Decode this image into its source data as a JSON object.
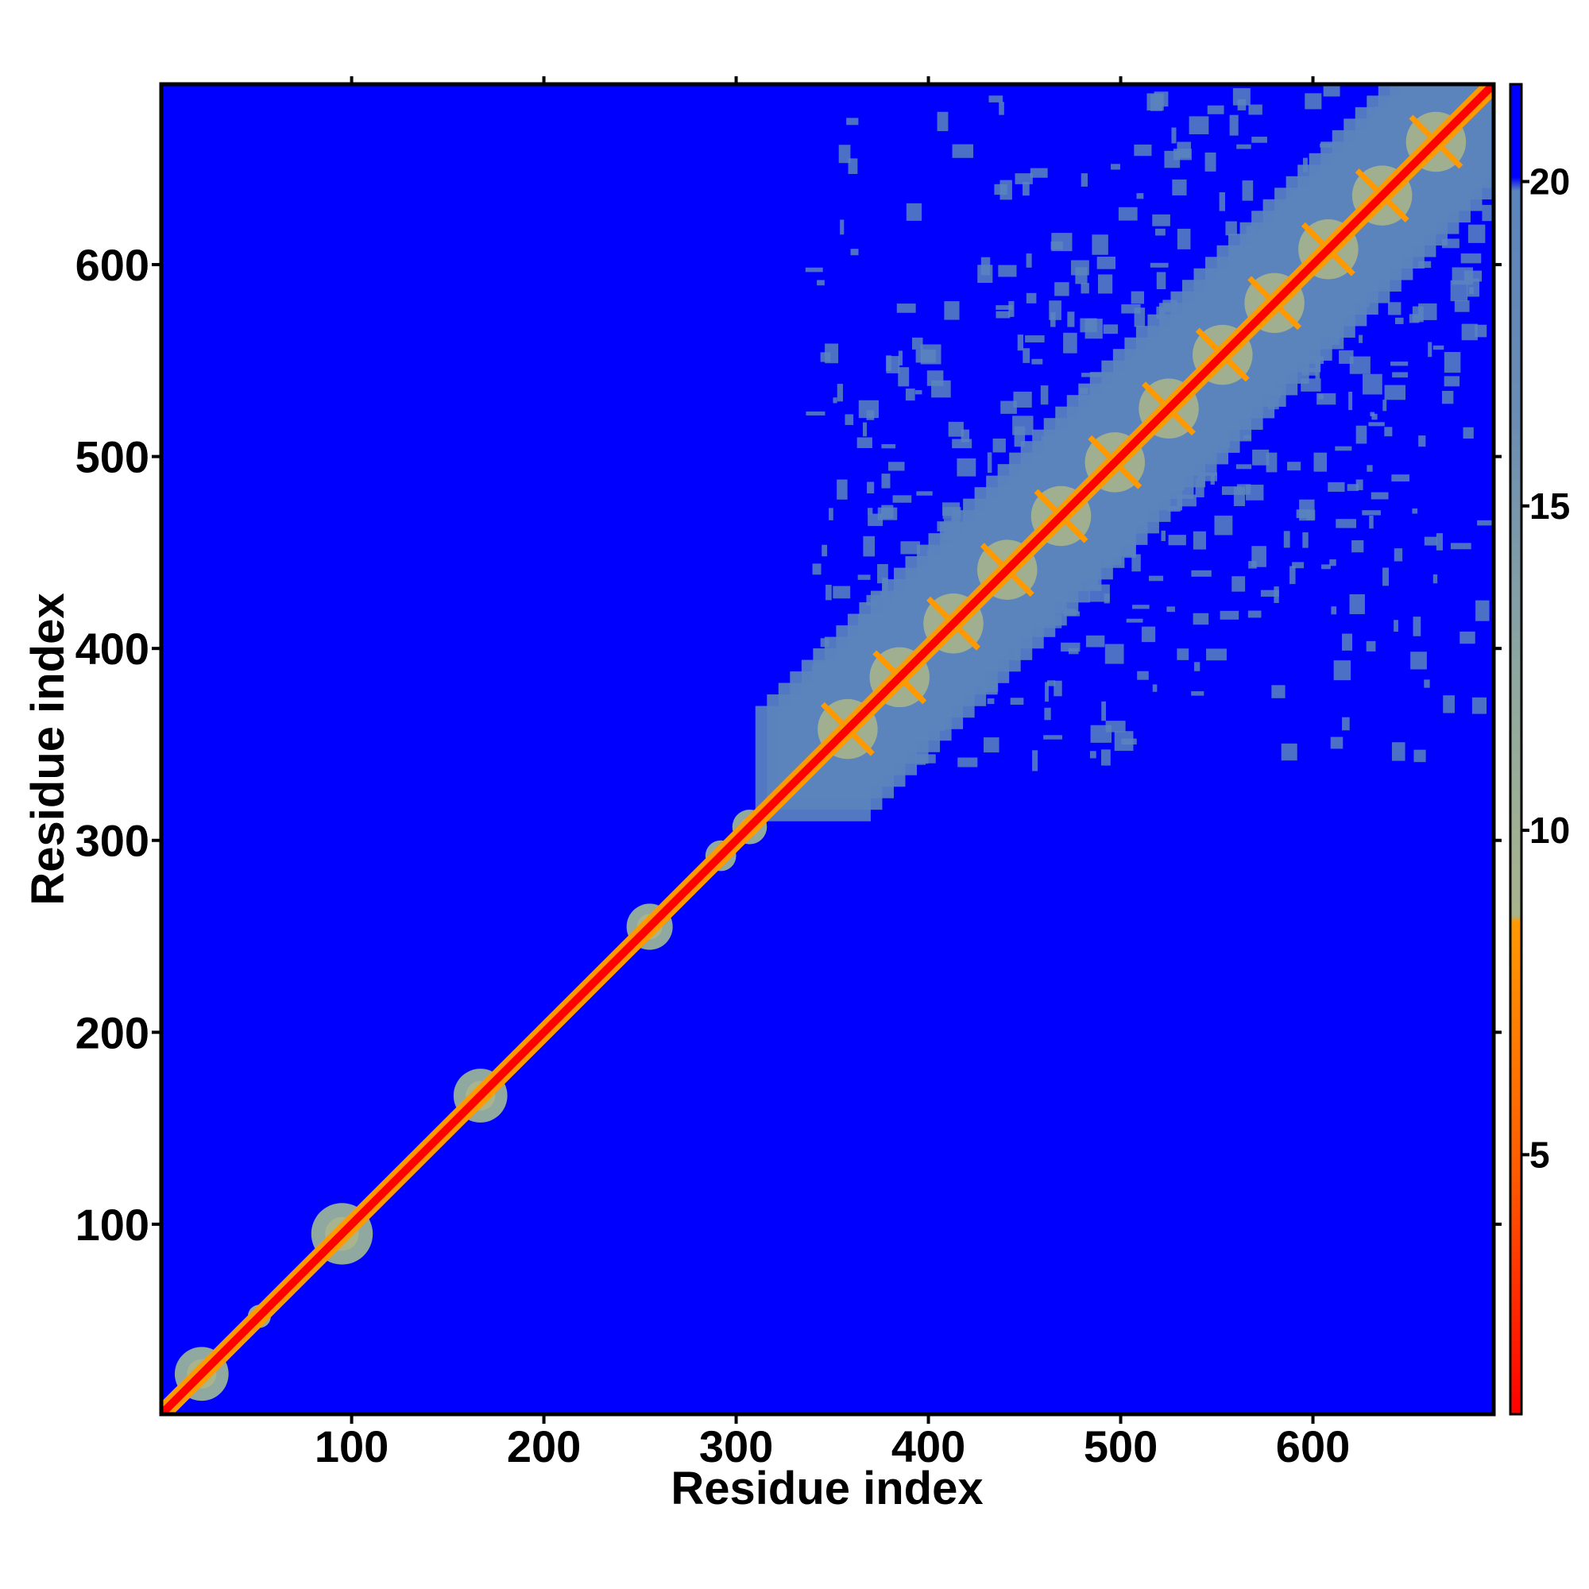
{
  "chart_data": {
    "type": "heatmap",
    "title": "",
    "xlabel": "Residue index",
    "ylabel": "Residue index",
    "xlim": [
      1,
      694
    ],
    "ylim": [
      1,
      694
    ],
    "x_ticks": [
      100,
      200,
      300,
      400,
      500,
      600
    ],
    "y_ticks": [
      100,
      200,
      300,
      400,
      500,
      600
    ],
    "x_tick_labels": [
      "100",
      "200",
      "300",
      "400",
      "500",
      "600"
    ],
    "y_tick_labels": [
      "100",
      "200",
      "300",
      "400",
      "500",
      "600"
    ],
    "grid": false,
    "legend": "none",
    "colorbar": {
      "position": "right",
      "range": [
        1,
        21.5
      ],
      "ticks": [
        5,
        10,
        15,
        20
      ],
      "tick_labels": [
        "5",
        "10",
        "15",
        "20"
      ],
      "colors": {
        "near": "#ff0000",
        "mid": "#ff9900",
        "light": "#8fa8a0",
        "far_gray": "#5b84bd",
        "background": "#0000ff"
      }
    },
    "description_values": {
      "diagonal_distance": 1,
      "background_distance": 21.5
    },
    "clusters": [
      {
        "center": 22,
        "radius": 14,
        "level": "light"
      },
      {
        "center": 52,
        "radius": 6,
        "level": "light"
      },
      {
        "center": 95,
        "radius": 16,
        "level": "light"
      },
      {
        "center": 167,
        "radius": 14,
        "level": "light"
      },
      {
        "center": 255,
        "radius": 12,
        "level": "light"
      },
      {
        "center": 292,
        "radius": 8,
        "level": "light"
      },
      {
        "center": 307,
        "radius": 9,
        "level": "light"
      }
    ],
    "domain_block": {
      "range": [
        340,
        694
      ],
      "level": "far_gray"
    },
    "domain_stars": [
      358,
      385,
      413,
      441,
      469,
      497,
      525,
      553,
      580,
      608,
      636,
      664
    ]
  }
}
